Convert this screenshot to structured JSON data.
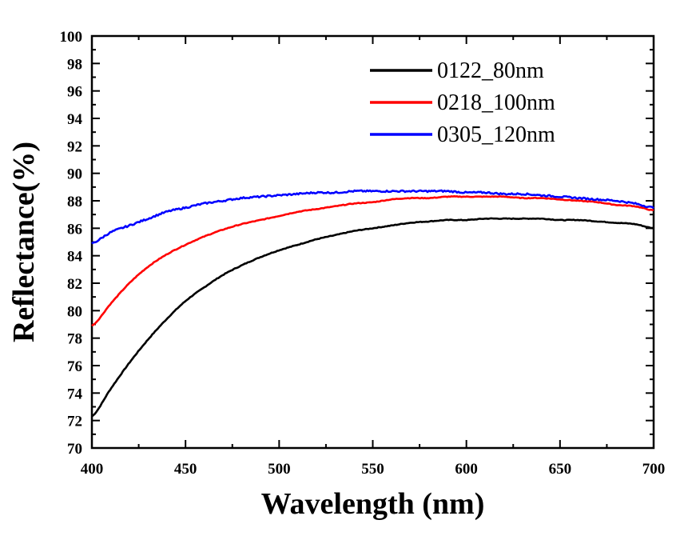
{
  "chart_data": {
    "type": "line",
    "xlabel": "Wavelength (nm)",
    "ylabel": "Reflectance(%)",
    "xlim": [
      400,
      700
    ],
    "ylim": [
      70,
      100
    ],
    "x_ticks": [
      "400",
      "450",
      "500",
      "550",
      "600",
      "650",
      "700"
    ],
    "y_ticks": [
      "70",
      "72",
      "74",
      "76",
      "78",
      "80",
      "82",
      "84",
      "86",
      "88",
      "90",
      "92",
      "94",
      "96",
      "98",
      "100"
    ],
    "grid": false,
    "legend_position": "top-right",
    "x": [
      400,
      410,
      420,
      430,
      440,
      450,
      460,
      470,
      480,
      490,
      500,
      510,
      520,
      530,
      540,
      550,
      560,
      570,
      580,
      590,
      600,
      610,
      620,
      630,
      640,
      650,
      660,
      670,
      680,
      690,
      700
    ],
    "series": [
      {
        "name": "0122_80nm",
        "color": "#000000",
        "values": [
          72.3,
          74.3,
          76.2,
          77.9,
          79.4,
          80.7,
          81.7,
          82.6,
          83.3,
          83.9,
          84.4,
          84.8,
          85.2,
          85.5,
          85.8,
          86.0,
          86.2,
          86.4,
          86.5,
          86.6,
          86.6,
          86.7,
          86.7,
          86.7,
          86.7,
          86.6,
          86.6,
          86.5,
          86.4,
          86.3,
          86.0
        ]
      },
      {
        "name": "0218_100nm",
        "color": "#ff0000",
        "values": [
          78.9,
          80.5,
          82.0,
          83.2,
          84.1,
          84.8,
          85.4,
          85.9,
          86.3,
          86.6,
          86.9,
          87.2,
          87.4,
          87.6,
          87.8,
          87.9,
          88.1,
          88.2,
          88.2,
          88.3,
          88.3,
          88.3,
          88.3,
          88.2,
          88.2,
          88.1,
          88.0,
          87.9,
          87.7,
          87.6,
          87.3
        ]
      },
      {
        "name": "0305_120nm",
        "color": "#0000ff",
        "values": [
          84.9,
          85.7,
          86.2,
          86.7,
          87.2,
          87.5,
          87.8,
          88.0,
          88.2,
          88.3,
          88.4,
          88.5,
          88.6,
          88.6,
          88.7,
          88.7,
          88.7,
          88.7,
          88.7,
          88.7,
          88.6,
          88.6,
          88.5,
          88.5,
          88.4,
          88.3,
          88.2,
          88.1,
          88.0,
          87.8,
          87.5
        ]
      }
    ]
  }
}
